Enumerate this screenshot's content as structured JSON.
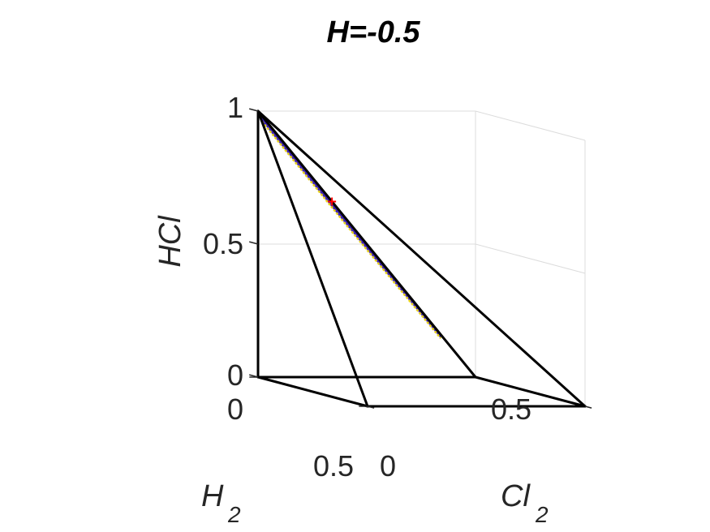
{
  "chart_data": {
    "type": "3d-surface",
    "title": "H=-0.5",
    "axes": {
      "x": {
        "label": "H",
        "label_subscript": "2",
        "ticks": [
          "0",
          "0.5"
        ],
        "range": [
          0,
          0.5
        ]
      },
      "y": {
        "label": "Cl",
        "label_subscript": "2",
        "ticks": [
          "0",
          "0.5"
        ],
        "range": [
          0,
          0.5
        ]
      },
      "z": {
        "label": "HCl",
        "ticks": [
          "0",
          "0.5",
          "1"
        ],
        "range": [
          0,
          1
        ]
      }
    },
    "grid": true,
    "domain_edges": [
      {
        "from": {
          "x": 0,
          "y": 0,
          "z": 1
        },
        "to": {
          "x": 0,
          "y": 0.5,
          "z": 0
        }
      },
      {
        "from": {
          "x": 0,
          "y": 0,
          "z": 1
        },
        "to": {
          "x": 0.5,
          "y": 0,
          "z": 0
        }
      },
      {
        "from": {
          "x": 0,
          "y": 0,
          "z": 1
        },
        "to": {
          "x": 0.5,
          "y": 0.5,
          "z": 0
        }
      },
      {
        "from": {
          "x": 0,
          "y": 0,
          "z": 1
        },
        "to": {
          "x": 0,
          "y": 0,
          "z": 0
        }
      },
      {
        "from": {
          "x": 0,
          "y": 0,
          "z": 0
        },
        "to": {
          "x": 0.5,
          "y": 0,
          "z": 0
        }
      },
      {
        "from": {
          "x": 0.5,
          "y": 0,
          "z": 0
        },
        "to": {
          "x": 0.5,
          "y": 0.5,
          "z": 0
        }
      },
      {
        "from": {
          "x": 0.5,
          "y": 0.5,
          "z": 0
        },
        "to": {
          "x": 0,
          "y": 0.5,
          "z": 0
        }
      },
      {
        "from": {
          "x": 0,
          "y": 0.5,
          "z": 0
        },
        "to": {
          "x": 0,
          "y": 0,
          "z": 0
        }
      }
    ],
    "surface": {
      "color": "#3a1fb4",
      "edge_color": "#e8d21a",
      "outer_edge": [
        {
          "x": 0,
          "y": 0,
          "z": 1
        },
        {
          "x": 0,
          "y": 0.42,
          "z": 0.16
        }
      ],
      "inner_edge": [
        {
          "x": 0.018,
          "y": 0,
          "z": 0.965
        },
        {
          "x": 0.01,
          "y": 0.2,
          "z": 0.57
        },
        {
          "x": 0.02,
          "y": 0.41,
          "z": 0.15
        }
      ]
    },
    "marker": {
      "color": "#ff0000",
      "x": 0,
      "y": 0.17,
      "z": 0.66
    }
  }
}
